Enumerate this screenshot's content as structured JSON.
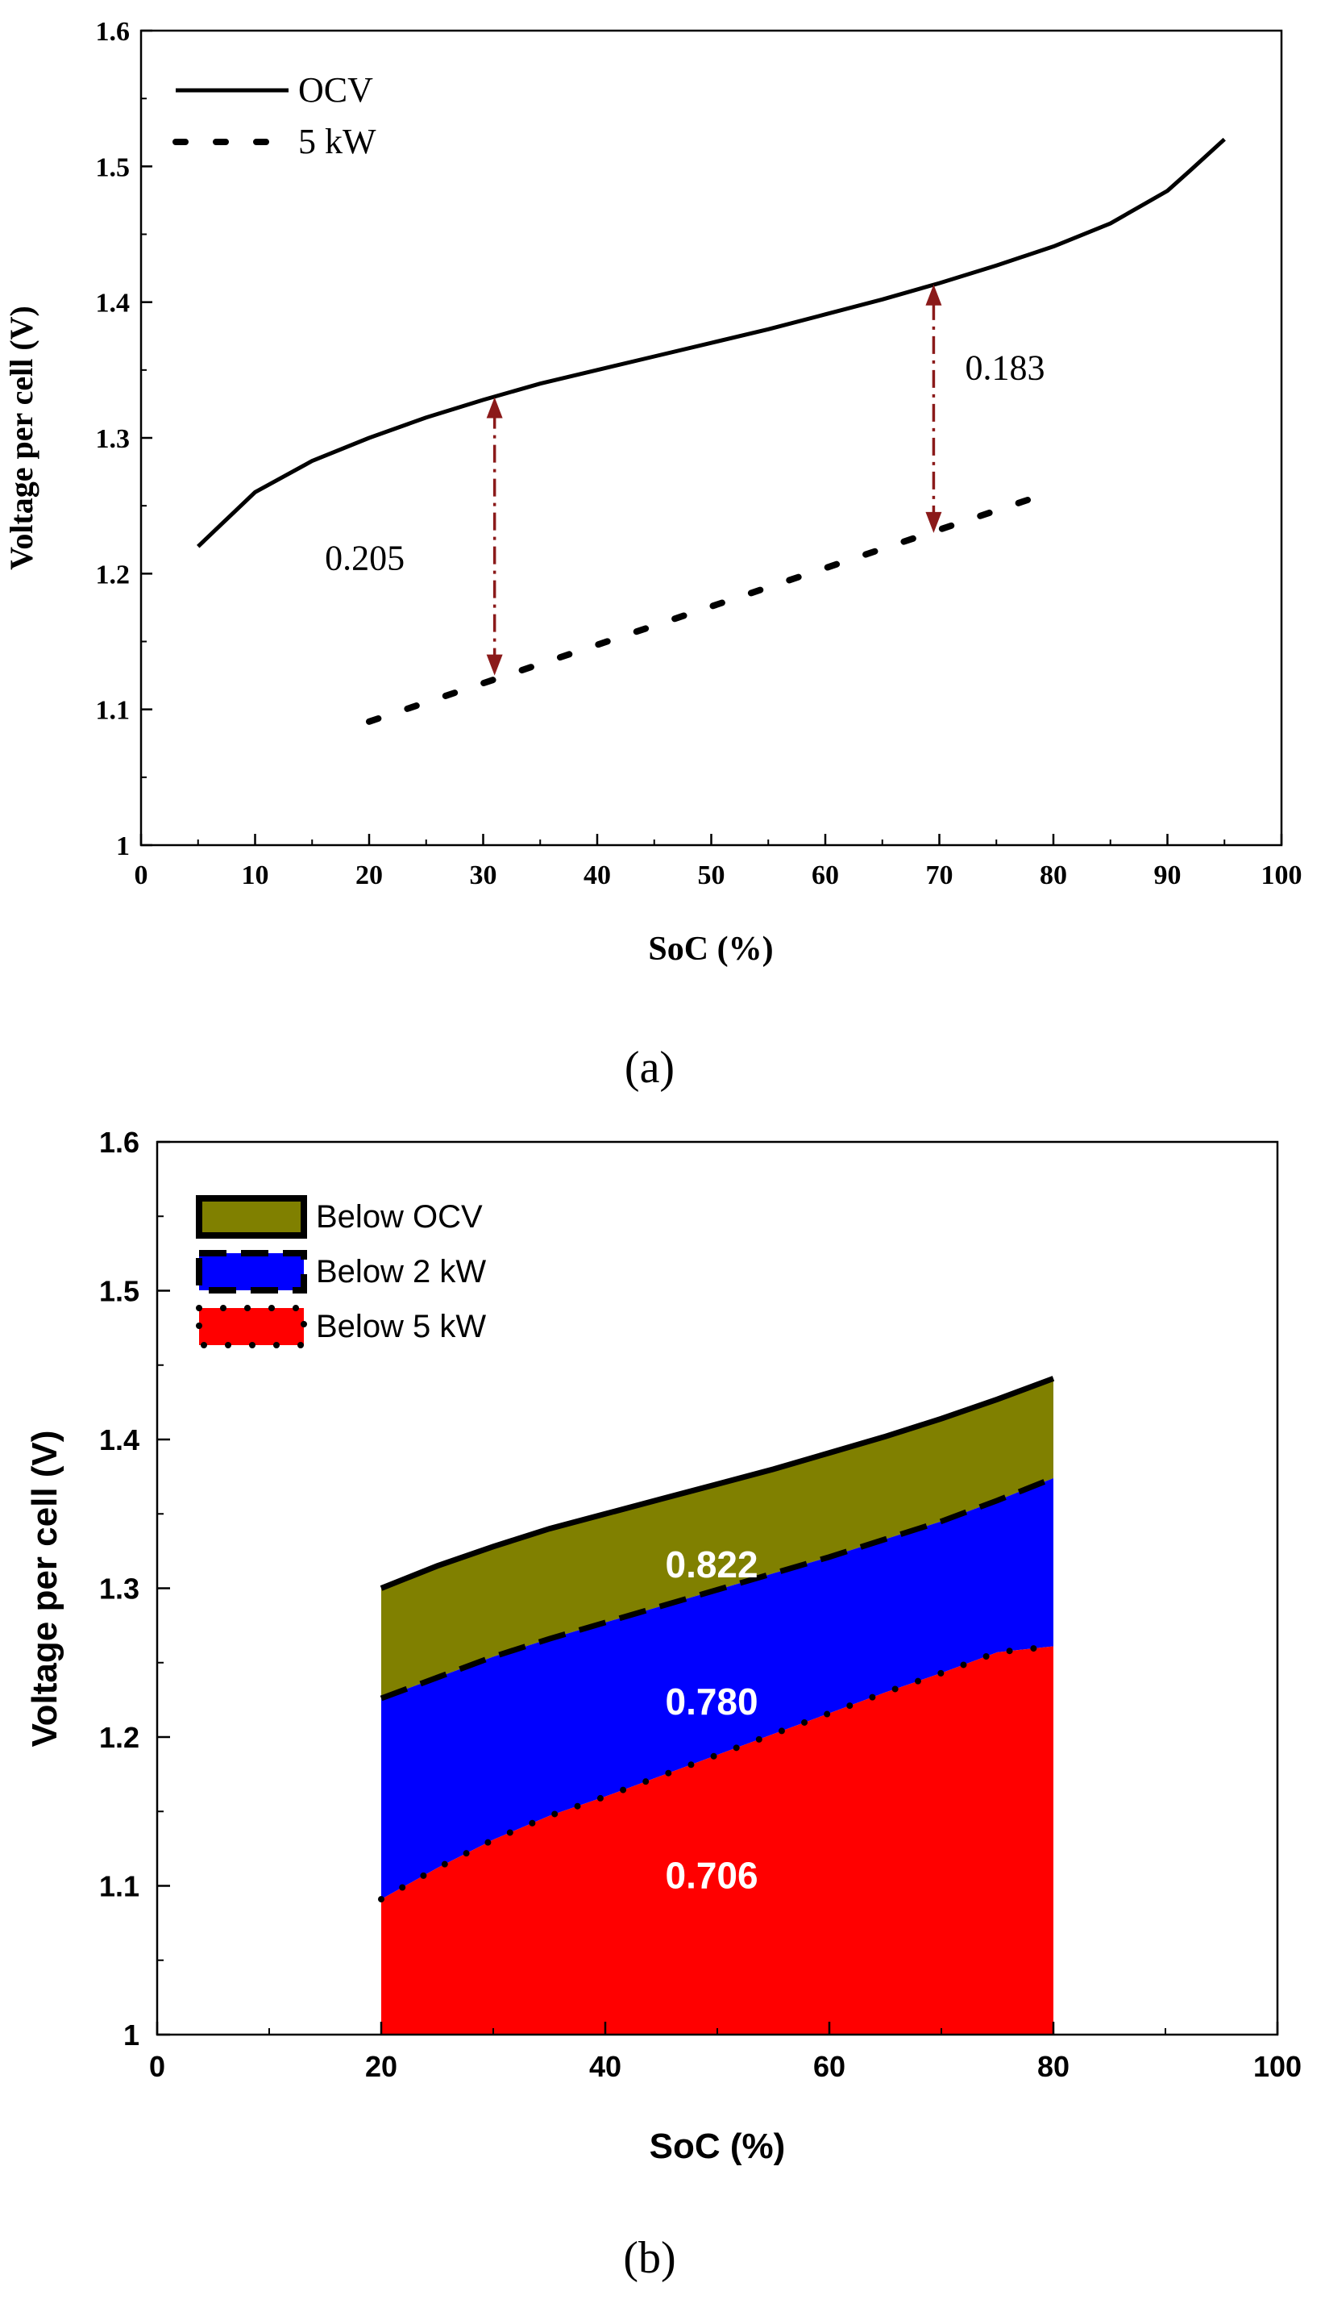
{
  "chart_data": [
    {
      "panel_label": "(a)",
      "type": "line",
      "xlabel": "SoC (%)",
      "ylabel": "Voltage per cell (V)",
      "xlim": [
        0,
        100
      ],
      "ylim": [
        1.0,
        1.6
      ],
      "x_ticks": [
        0,
        10,
        20,
        30,
        40,
        50,
        60,
        70,
        80,
        90,
        100
      ],
      "y_ticks": [
        1.0,
        1.1,
        1.2,
        1.3,
        1.4,
        1.5,
        1.6
      ],
      "grid": false,
      "legend_position": "top-left",
      "series": [
        {
          "name": "OCV",
          "style": "solid",
          "color": "#000000",
          "x": [
            5,
            7,
            10,
            15,
            20,
            25,
            30,
            35,
            40,
            45,
            50,
            55,
            60,
            65,
            70,
            75,
            80,
            85,
            90,
            92,
            95
          ],
          "y": [
            1.22,
            1.236,
            1.26,
            1.283,
            1.3,
            1.315,
            1.328,
            1.34,
            1.35,
            1.36,
            1.37,
            1.38,
            1.391,
            1.402,
            1.414,
            1.427,
            1.441,
            1.458,
            1.482,
            1.497,
            1.52
          ]
        },
        {
          "name": "5 kW",
          "style": "dotted",
          "color": "#000000",
          "x": [
            20,
            78
          ],
          "y": [
            1.091,
            1.255
          ]
        }
      ],
      "annotations": [
        {
          "text": "0.205",
          "x_at": 31,
          "y_from": 1.125,
          "y_to": 1.33
        },
        {
          "text": "0.183",
          "x_at": 69.5,
          "y_from": 1.23,
          "y_to": 1.413
        }
      ],
      "annotation_color": "#8b1a1a"
    },
    {
      "panel_label": "(b)",
      "type": "area",
      "xlabel": "SoC (%)",
      "ylabel": "Voltage per cell (V)",
      "xlim": [
        0,
        100
      ],
      "ylim": [
        1.0,
        1.6
      ],
      "x_ticks": [
        0,
        20,
        40,
        60,
        80,
        100
      ],
      "y_ticks": [
        1.0,
        1.1,
        1.2,
        1.3,
        1.4,
        1.5,
        1.6
      ],
      "grid": false,
      "legend_position": "top-left",
      "x": [
        20,
        25,
        30,
        35,
        40,
        45,
        50,
        55,
        60,
        65,
        70,
        75,
        80
      ],
      "series": [
        {
          "name": "Below OCV",
          "color": "#808000",
          "border": "solid",
          "values": [
            1.3,
            1.315,
            1.328,
            1.34,
            1.35,
            1.36,
            1.37,
            1.38,
            1.391,
            1.402,
            1.414,
            1.427,
            1.441
          ],
          "label": "0.822"
        },
        {
          "name": "Below 2 kW",
          "color": "#0000ff",
          "border": "dashed",
          "values": [
            1.226,
            1.24,
            1.254,
            1.266,
            1.277,
            1.288,
            1.299,
            1.31,
            1.321,
            1.333,
            1.345,
            1.359,
            1.374
          ],
          "label": "0.780"
        },
        {
          "name": "Below 5 kW",
          "color": "#ff0000",
          "border": "dotted",
          "values": [
            1.091,
            1.112,
            1.131,
            1.147,
            1.16,
            1.174,
            1.188,
            1.202,
            1.216,
            1.23,
            1.243,
            1.257,
            1.261
          ],
          "label": "0.706"
        }
      ]
    }
  ]
}
